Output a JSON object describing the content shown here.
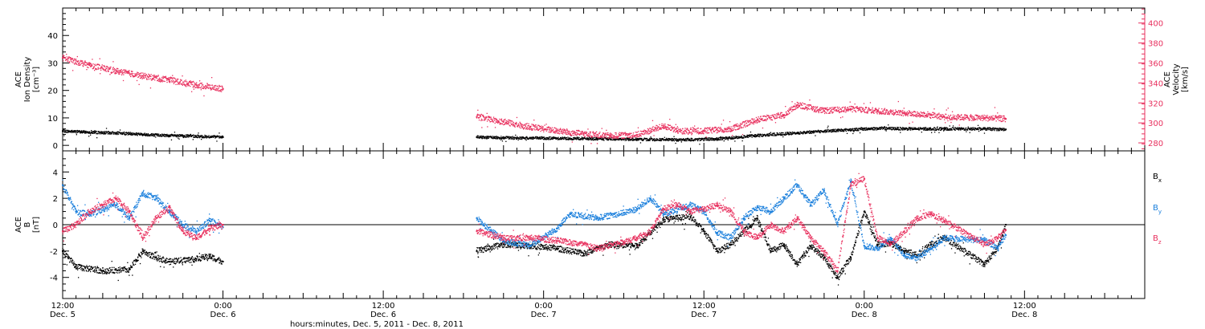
{
  "chart_data": [
    {
      "type": "scatter",
      "panel": "top",
      "ylabel_lines": [
        "ACE",
        "Ion Density",
        "[cm⁻³]"
      ],
      "ylabel_right_lines": [
        "ACE",
        "Velocity",
        "[km/s]"
      ],
      "ylim": [
        -2,
        50
      ],
      "ylim_right": [
        272,
        415
      ],
      "yticks": [
        "0",
        "10",
        "20",
        "30",
        "40"
      ],
      "yticks_right": [
        "280",
        "300",
        "320",
        "340",
        "360",
        "380",
        "400"
      ],
      "colors": {
        "density": "#000000",
        "velocity": "#e8305e"
      },
      "series": [
        {
          "name": "",
          "axis": "left",
          "color": "#000000",
          "points": [
            [
              0,
              5.2
            ],
            [
              2,
              4.8
            ],
            [
              4,
              4.5
            ],
            [
              6,
              4.0
            ],
            [
              8,
              3.6
            ],
            [
              10,
              3.3
            ],
            [
              12,
              3.0
            ],
            [
              31,
              3.0
            ],
            [
              34,
              2.7
            ],
            [
              37,
              2.6
            ],
            [
              40,
              2.4
            ],
            [
              43,
              2.2
            ],
            [
              46,
              2.0
            ],
            [
              49,
              2.3
            ],
            [
              52,
              3.6
            ],
            [
              55,
              4.5
            ],
            [
              58,
              5.5
            ],
            [
              61,
              6.2
            ],
            [
              64,
              6.0
            ],
            [
              66,
              6.0
            ],
            [
              69,
              6.0
            ],
            [
              70.6,
              5.8
            ]
          ]
        },
        {
          "name": "",
          "axis": "right",
          "color": "#e8305e",
          "points": [
            [
              0,
              365
            ],
            [
              2,
              358
            ],
            [
              4,
              352
            ],
            [
              6,
              347
            ],
            [
              8,
              343
            ],
            [
              10,
              338
            ],
            [
              12,
              334
            ],
            [
              31,
              306
            ],
            [
              33,
              301
            ],
            [
              35,
              296
            ],
            [
              37,
              292
            ],
            [
              39,
              289
            ],
            [
              41,
              287
            ],
            [
              43,
              288
            ],
            [
              45,
              297
            ],
            [
              46,
              292
            ],
            [
              48,
              292
            ],
            [
              50,
              294
            ],
            [
              52,
              303
            ],
            [
              54,
              308
            ],
            [
              55,
              318
            ],
            [
              57,
              312
            ],
            [
              59,
              314
            ],
            [
              61,
              312
            ],
            [
              63,
              310
            ],
            [
              65,
              308
            ],
            [
              66,
              306
            ],
            [
              69,
              305
            ],
            [
              70.6,
              304
            ]
          ]
        }
      ]
    },
    {
      "type": "scatter",
      "panel": "bottom",
      "ylabel_lines": [
        "ACE",
        "B",
        "[nT]"
      ],
      "ylim": [
        -5.6,
        5.6
      ],
      "yticks": [
        "-4",
        "-2",
        "0",
        "2",
        "4"
      ],
      "legend": [
        "Bₓ",
        "Bᵧ",
        "B_z"
      ],
      "legend_labels": [
        {
          "base": "B",
          "sub": "x"
        },
        {
          "base": "B",
          "sub": "y"
        },
        {
          "base": "B",
          "sub": "z"
        }
      ],
      "series": [
        {
          "name": "B_x",
          "color": "#000000",
          "points": [
            [
              0,
              -2.0
            ],
            [
              1,
              -3.2
            ],
            [
              3,
              -3.5
            ],
            [
              5,
              -3.4
            ],
            [
              6,
              -2.0
            ],
            [
              7,
              -2.5
            ],
            [
              8,
              -2.8
            ],
            [
              10,
              -2.6
            ],
            [
              11,
              -2.4
            ],
            [
              12,
              -2.8
            ],
            [
              31,
              -2.0
            ],
            [
              33,
              -1.5
            ],
            [
              35,
              -1.6
            ],
            [
              37,
              -1.8
            ],
            [
              39,
              -2.2
            ],
            [
              41,
              -1.5
            ],
            [
              43,
              -1.6
            ],
            [
              45,
              0.4
            ],
            [
              47,
              0.6
            ],
            [
              48,
              -0.5
            ],
            [
              49,
              -2.0
            ],
            [
              50,
              -1.5
            ],
            [
              52,
              0.5
            ],
            [
              53,
              -2.0
            ],
            [
              54,
              -1.5
            ],
            [
              55,
              -3.0
            ],
            [
              56,
              -1.6
            ],
            [
              57,
              -2.5
            ],
            [
              58,
              -4.0
            ],
            [
              59,
              -2.5
            ],
            [
              60,
              1.0
            ],
            [
              61,
              -1.5
            ],
            [
              62,
              -1.4
            ],
            [
              63,
              -2.0
            ],
            [
              64,
              -2.3
            ],
            [
              65,
              -1.5
            ],
            [
              66,
              -1.0
            ],
            [
              69,
              -3.0
            ],
            [
              70,
              -1.8
            ],
            [
              70.6,
              0.0
            ]
          ]
        },
        {
          "name": "B_y",
          "color": "#1a7fdc",
          "points": [
            [
              0,
              3.0
            ],
            [
              1,
              1.0
            ],
            [
              2,
              0.8
            ],
            [
              4,
              1.5
            ],
            [
              5,
              0.5
            ],
            [
              6,
              2.4
            ],
            [
              7,
              2.0
            ],
            [
              8,
              1.0
            ],
            [
              9,
              0.0
            ],
            [
              10,
              -0.5
            ],
            [
              11,
              0.3
            ],
            [
              12,
              -0.2
            ],
            [
              31,
              0.5
            ],
            [
              32,
              -0.4
            ],
            [
              33,
              -1.2
            ],
            [
              35,
              -1.6
            ],
            [
              37,
              -0.3
            ],
            [
              38,
              0.8
            ],
            [
              40,
              0.5
            ],
            [
              42,
              0.9
            ],
            [
              43,
              1.2
            ],
            [
              44,
              2.0
            ],
            [
              45,
              0.8
            ],
            [
              47,
              1.5
            ],
            [
              48,
              1.0
            ],
            [
              49,
              -0.6
            ],
            [
              50,
              -1.0
            ],
            [
              51,
              0.5
            ],
            [
              52,
              1.3
            ],
            [
              53,
              1.0
            ],
            [
              54,
              2.0
            ],
            [
              55,
              3.0
            ],
            [
              56,
              1.5
            ],
            [
              57,
              2.6
            ],
            [
              58,
              0.0
            ],
            [
              59,
              3.3
            ],
            [
              60,
              -1.6
            ],
            [
              61,
              -1.8
            ],
            [
              62,
              -1.0
            ],
            [
              63,
              -2.3
            ],
            [
              64,
              -2.5
            ],
            [
              65,
              -1.8
            ],
            [
              66,
              -1.0
            ],
            [
              69,
              -1.2
            ],
            [
              70,
              -1.8
            ],
            [
              70.6,
              -0.8
            ]
          ]
        },
        {
          "name": "B_z",
          "color": "#e8305e",
          "points": [
            [
              0,
              -0.5
            ],
            [
              1,
              0.0
            ],
            [
              2,
              1.0
            ],
            [
              3,
              1.5
            ],
            [
              4,
              2.0
            ],
            [
              5,
              1.0
            ],
            [
              6,
              -1.0
            ],
            [
              7,
              0.5
            ],
            [
              8,
              1.3
            ],
            [
              9,
              -0.5
            ],
            [
              10,
              -1.0
            ],
            [
              11,
              -0.3
            ],
            [
              12,
              0.0
            ],
            [
              31,
              -0.5
            ],
            [
              33,
              -1.0
            ],
            [
              35,
              -1.0
            ],
            [
              37,
              -1.2
            ],
            [
              39,
              -1.5
            ],
            [
              40,
              -1.8
            ],
            [
              42,
              -1.3
            ],
            [
              43,
              -1.0
            ],
            [
              44,
              -0.5
            ],
            [
              45,
              1.2
            ],
            [
              46,
              1.5
            ],
            [
              47,
              1.0
            ],
            [
              48,
              1.2
            ],
            [
              49,
              1.5
            ],
            [
              50,
              1.0
            ],
            [
              51,
              -0.5
            ],
            [
              52,
              -1.0
            ],
            [
              53,
              0.0
            ],
            [
              54,
              -0.5
            ],
            [
              55,
              0.5
            ],
            [
              56,
              -1.0
            ],
            [
              57,
              -2.0
            ],
            [
              58,
              -3.5
            ],
            [
              59,
              3.0
            ],
            [
              60,
              3.5
            ],
            [
              61,
              -1.0
            ],
            [
              62,
              -1.5
            ],
            [
              63,
              -0.5
            ],
            [
              64,
              0.5
            ],
            [
              65,
              0.8
            ],
            [
              66,
              0.3
            ],
            [
              69,
              -1.5
            ],
            [
              70,
              -1.0
            ],
            [
              70.6,
              -0.4
            ]
          ]
        }
      ]
    }
  ],
  "x_axis": {
    "xlim": [
      0,
      81
    ],
    "xlabel": "hours:minutes, Dec.  5, 2011  - Dec.  8, 2011",
    "major_ticks": [
      {
        "hours": 0,
        "time": "12:00",
        "date": "Dec. 5"
      },
      {
        "hours": 12,
        "time": "0:00",
        "date": "Dec. 6"
      },
      {
        "hours": 24,
        "time": "12:00",
        "date": "Dec. 6"
      },
      {
        "hours": 36,
        "time": "0:00",
        "date": "Dec. 7"
      },
      {
        "hours": 48,
        "time": "12:00",
        "date": "Dec. 7"
      },
      {
        "hours": 60,
        "time": "0:00",
        "date": "Dec. 8"
      },
      {
        "hours": 72,
        "time": "12:00",
        "date": "Dec. 8"
      }
    ]
  }
}
